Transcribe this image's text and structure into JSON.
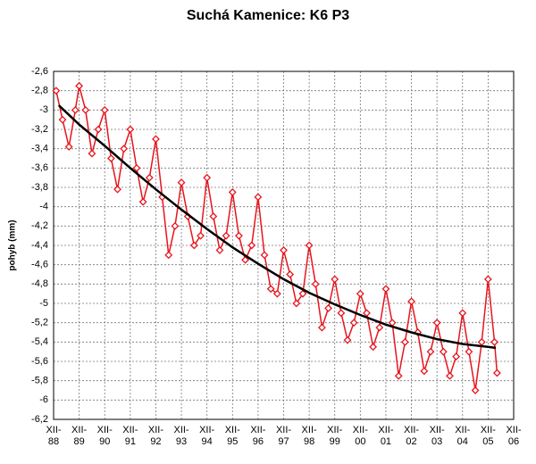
{
  "chart_data": {
    "type": "line",
    "title": "Suchá Kamenice: K6 P3",
    "y_label": "pohyb (mm)",
    "xlim": [
      0,
      18
    ],
    "xticks": [
      {
        "value": 0,
        "label": "XII-88"
      },
      {
        "value": 1,
        "label": "XII-89"
      },
      {
        "value": 2,
        "label": "XII-90"
      },
      {
        "value": 3,
        "label": "XII-91"
      },
      {
        "value": 4,
        "label": "XII-92"
      },
      {
        "value": 5,
        "label": "XII-93"
      },
      {
        "value": 6,
        "label": "XII-94"
      },
      {
        "value": 7,
        "label": "XII-95"
      },
      {
        "value": 8,
        "label": "XII-96"
      },
      {
        "value": 9,
        "label": "XII-97"
      },
      {
        "value": 10,
        "label": "XII-98"
      },
      {
        "value": 11,
        "label": "XII-99"
      },
      {
        "value": 12,
        "label": "XII-00"
      },
      {
        "value": 13,
        "label": "XII-01"
      },
      {
        "value": 14,
        "label": "XII-02"
      },
      {
        "value": 15,
        "label": "XII-03"
      },
      {
        "value": 16,
        "label": "XII-04"
      },
      {
        "value": 17,
        "label": "XII-05"
      },
      {
        "value": 18,
        "label": "XII-06"
      }
    ],
    "ylim": [
      -6.2,
      -2.6
    ],
    "yticks": [
      {
        "value": -2.6,
        "label": "-2,6"
      },
      {
        "value": -2.8,
        "label": "-2,8"
      },
      {
        "value": -3,
        "label": "-3"
      },
      {
        "value": -3.2,
        "label": "-3,2"
      },
      {
        "value": -3.4,
        "label": "-3,4"
      },
      {
        "value": -3.6,
        "label": "-3,6"
      },
      {
        "value": -3.8,
        "label": "-3,8"
      },
      {
        "value": -4,
        "label": "-4"
      },
      {
        "value": -4.2,
        "label": "-4,2"
      },
      {
        "value": -4.4,
        "label": "-4,4"
      },
      {
        "value": -4.6,
        "label": "-4,6"
      },
      {
        "value": -4.8,
        "label": "-4,8"
      },
      {
        "value": -5,
        "label": "-5"
      },
      {
        "value": -5.2,
        "label": "-5,2"
      },
      {
        "value": -5.4,
        "label": "-5,4"
      },
      {
        "value": -5.6,
        "label": "-5,6"
      },
      {
        "value": -5.8,
        "label": "-5,8"
      },
      {
        "value": -6,
        "label": "-6"
      },
      {
        "value": -6.2,
        "label": "-6,2"
      }
    ],
    "grid": true,
    "series": [
      {
        "color": "#e8141c",
        "marker": "diamond",
        "x": [
          0.1,
          0.35,
          0.6,
          0.85,
          1,
          1.25,
          1.5,
          1.75,
          2,
          2.25,
          2.5,
          2.75,
          3,
          3.25,
          3.5,
          3.75,
          4,
          4.25,
          4.5,
          4.75,
          5,
          5.25,
          5.5,
          5.75,
          6,
          6.25,
          6.5,
          6.75,
          7,
          7.25,
          7.5,
          7.75,
          8,
          8.25,
          8.5,
          8.75,
          9,
          9.25,
          9.5,
          9.75,
          10,
          10.25,
          10.5,
          10.75,
          11,
          11.25,
          11.5,
          11.75,
          12,
          12.25,
          12.5,
          12.75,
          13,
          13.25,
          13.5,
          13.75,
          14,
          14.25,
          14.5,
          14.75,
          15,
          15.25,
          15.5,
          15.75,
          16,
          16.25,
          16.5,
          16.75,
          17,
          17.25,
          17.35
        ],
        "values": [
          -2.8,
          -3.1,
          -3.38,
          -3,
          -2.75,
          -3,
          -3.45,
          -3.2,
          -3,
          -3.5,
          -3.82,
          -3.4,
          -3.2,
          -3.6,
          -3.95,
          -3.7,
          -3.3,
          -3.9,
          -4.5,
          -4.2,
          -3.75,
          -4.1,
          -4.4,
          -4.3,
          -3.7,
          -4.1,
          -4.45,
          -4.3,
          -3.85,
          -4.3,
          -4.55,
          -4.4,
          -3.9,
          -4.5,
          -4.85,
          -4.9,
          -4.45,
          -4.7,
          -5,
          -4.9,
          -4.4,
          -4.8,
          -5.25,
          -5.05,
          -4.75,
          -5.1,
          -5.38,
          -5.2,
          -4.9,
          -5.1,
          -5.45,
          -5.25,
          -4.85,
          -5.2,
          -5.75,
          -5.4,
          -4.98,
          -5.3,
          -5.7,
          -5.5,
          -5.2,
          -5.5,
          -5.75,
          -5.55,
          -5.1,
          -5.5,
          -5.9,
          -5.4,
          -4.75,
          -5.4,
          -5.72
        ]
      },
      {
        "color": "#000000",
        "x": [
          0.2,
          1,
          2,
          3,
          4,
          5,
          6,
          7,
          8,
          9,
          10,
          11,
          12,
          13,
          14,
          15,
          16,
          17,
          17.3
        ],
        "values": [
          -2.95,
          -3.15,
          -3.37,
          -3.6,
          -3.82,
          -4.03,
          -4.23,
          -4.42,
          -4.59,
          -4.75,
          -4.89,
          -5.01,
          -5.12,
          -5.22,
          -5.3,
          -5.37,
          -5.42,
          -5.45,
          -5.46
        ]
      }
    ]
  }
}
